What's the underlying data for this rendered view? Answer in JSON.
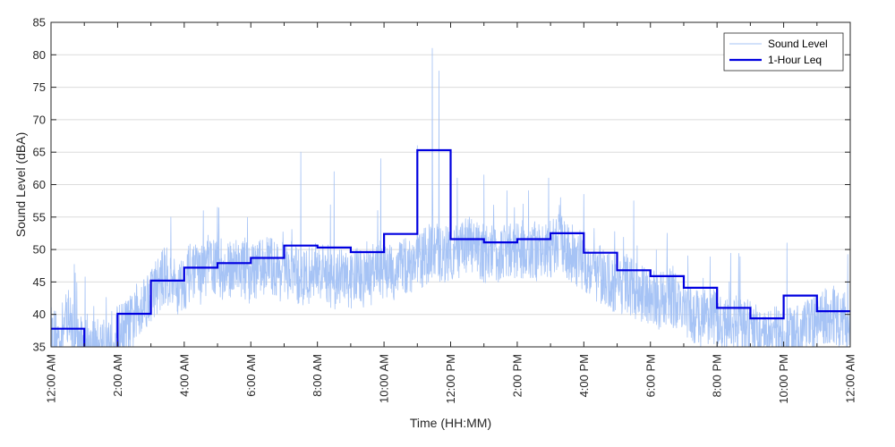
{
  "chart_data": {
    "type": "line",
    "xlabel": "Time (HH:MM)",
    "ylabel": "Sound Level (dBA)",
    "ylim": [
      35,
      85
    ],
    "xlim": [
      "00:00",
      "24:00"
    ],
    "x_tick_labels": [
      "12:00 AM",
      "2:00 AM",
      "4:00 AM",
      "6:00 AM",
      "8:00 AM",
      "10:00 AM",
      "12:00 PM",
      "2:00 PM",
      "4:00 PM",
      "6:00 PM",
      "8:00 PM",
      "10:00 PM",
      "12:00 AM"
    ],
    "y_ticks": [
      35,
      40,
      45,
      50,
      55,
      60,
      65,
      70,
      75,
      80,
      85
    ],
    "grid": "horizontal",
    "legend_position": "top-right",
    "series": [
      {
        "name": "Sound Level",
        "style": "thin line",
        "color": "#a6c3f5",
        "x_hours": [
          0,
          0.25,
          0.5,
          0.75,
          1,
          1.25,
          1.5,
          1.75,
          2,
          2.25,
          2.5,
          2.75,
          3,
          3.25,
          3.5,
          3.75,
          4,
          4.25,
          4.5,
          4.75,
          5,
          5.25,
          5.5,
          5.75,
          6,
          6.25,
          6.5,
          6.75,
          7,
          7.25,
          7.5,
          7.75,
          8,
          8.25,
          8.5,
          8.75,
          9,
          9.25,
          9.5,
          9.75,
          10,
          10.25,
          10.5,
          10.75,
          11,
          11.25,
          11.5,
          11.75,
          12,
          12.25,
          12.5,
          12.75,
          13,
          13.25,
          13.5,
          13.75,
          14,
          14.25,
          14.5,
          14.75,
          15,
          15.25,
          15.5,
          15.75,
          16,
          16.25,
          16.5,
          16.75,
          17,
          17.25,
          17.5,
          17.75,
          18,
          18.25,
          18.5,
          18.75,
          19,
          19.25,
          19.5,
          19.75,
          20,
          20.25,
          20.5,
          20.75,
          21,
          21.25,
          21.5,
          21.75,
          22,
          22.25,
          22.5,
          22.75,
          23,
          23.25,
          23.5,
          23.75,
          24
        ],
        "values": [
          37,
          36,
          40,
          36,
          35,
          35,
          35,
          36,
          37,
          38,
          39,
          42,
          43,
          45,
          46,
          44,
          45,
          47,
          46,
          48,
          47,
          46,
          48,
          47,
          46,
          47,
          48,
          47,
          46,
          47,
          45,
          46,
          47,
          46,
          45,
          46,
          45,
          46,
          45,
          47,
          47,
          46,
          48,
          47,
          48,
          49,
          50,
          49,
          50,
          49,
          51,
          50,
          49,
          50,
          49,
          50,
          50,
          49,
          50,
          49,
          50,
          51,
          50,
          49,
          48,
          47,
          46,
          45,
          44,
          45,
          44,
          43,
          43,
          42,
          43,
          42,
          41,
          40,
          39,
          40,
          39,
          38,
          39,
          38,
          38,
          37,
          36,
          37,
          36,
          37,
          37,
          38,
          39,
          40,
          40,
          39,
          39
        ],
        "peaks": [
          {
            "x_hours": 0.7,
            "value": 47.7
          },
          {
            "x_hours": 3.6,
            "value": 55
          },
          {
            "x_hours": 5.0,
            "value": 56.5
          },
          {
            "x_hours": 7.5,
            "value": 65
          },
          {
            "x_hours": 8.5,
            "value": 62
          },
          {
            "x_hours": 9.9,
            "value": 64
          },
          {
            "x_hours": 11.0,
            "value": 66
          },
          {
            "x_hours": 11.45,
            "value": 81
          },
          {
            "x_hours": 11.65,
            "value": 77.5
          },
          {
            "x_hours": 12.2,
            "value": 61
          },
          {
            "x_hours": 13.0,
            "value": 61.5
          },
          {
            "x_hours": 15.3,
            "value": 58
          },
          {
            "x_hours": 16.0,
            "value": 58.5
          },
          {
            "x_hours": 17.5,
            "value": 57.5
          },
          {
            "x_hours": 18.5,
            "value": 52.5
          },
          {
            "x_hours": 22.1,
            "value": 51
          }
        ]
      },
      {
        "name": "1-Hour Leq",
        "style": "step",
        "color": "#0000e0",
        "hour_start": [
          0,
          1,
          2,
          3,
          4,
          5,
          6,
          7,
          8,
          9,
          10,
          11,
          12,
          13,
          14,
          15,
          16,
          17,
          18,
          19,
          20,
          21,
          22,
          23
        ],
        "values": [
          37.8,
          34.5,
          40.1,
          45.2,
          47.2,
          47.9,
          48.7,
          50.6,
          50.3,
          49.6,
          52.4,
          65.3,
          51.6,
          51.1,
          51.6,
          52.5,
          49.5,
          46.8,
          45.9,
          44.1,
          41.0,
          39.4,
          42.9,
          40.5
        ]
      }
    ]
  }
}
